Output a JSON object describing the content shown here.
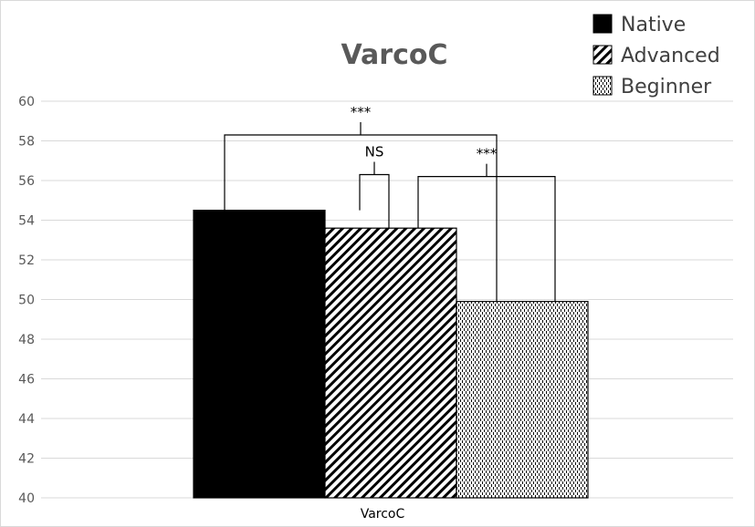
{
  "chart_data": {
    "type": "bar",
    "title": "VarcoC",
    "categories": [
      "VarcoC"
    ],
    "series": [
      {
        "name": "Native",
        "values": [
          54.5
        ],
        "pattern": "solid-black"
      },
      {
        "name": "Advanced",
        "values": [
          53.6
        ],
        "pattern": "diagonal-hatch"
      },
      {
        "name": "Beginner",
        "values": [
          49.9
        ],
        "pattern": "dotted"
      }
    ],
    "ylim": [
      40,
      60
    ],
    "yticks": [
      "40",
      "42",
      "44",
      "46",
      "48",
      "50",
      "52",
      "54",
      "56",
      "58",
      "60"
    ],
    "xlabel": "",
    "ylabel": "",
    "grid": true,
    "legend_position": "top-right",
    "significance": [
      {
        "between": [
          "Native",
          "Advanced"
        ],
        "label": "NS",
        "level": 56.3
      },
      {
        "between": [
          "Advanced",
          "Beginner"
        ],
        "label": "***",
        "level": 56.2
      },
      {
        "between": [
          "Native",
          "Beginner"
        ],
        "label": "***",
        "level": 58.3
      }
    ],
    "colors": {
      "gridline": "#d9d9d9",
      "text": "#595959",
      "bar_outline": "#000000"
    }
  }
}
